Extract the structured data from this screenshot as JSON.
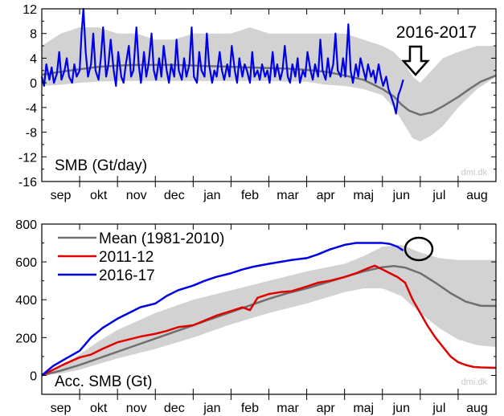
{
  "chart_data": [
    {
      "type": "line",
      "panel": "top",
      "title": "SMB (Gt/day)",
      "xlabel": "",
      "ylabel": "",
      "ylim": [
        -16,
        12
      ],
      "yticks": [
        12,
        8,
        4,
        0,
        -4,
        -8,
        -12,
        -16
      ],
      "months": [
        "sep",
        "okt",
        "nov",
        "dec",
        "jan",
        "feb",
        "mar",
        "apr",
        "maj",
        "jun",
        "jul",
        "aug"
      ],
      "watermark": "dmi.dk",
      "annotation": "2016-2017",
      "x_unit": "month index (0 = 1 Sep, 12 = 31 Aug)",
      "band": {
        "name": "range (1981-2010)",
        "x": [
          0,
          0.5,
          1,
          1.5,
          2,
          2.5,
          3,
          3.5,
          4,
          4.5,
          5,
          5.5,
          6,
          6.5,
          7,
          7.5,
          8,
          8.5,
          9,
          9.3,
          9.6,
          9.8,
          10,
          10.3,
          10.6,
          11,
          11.5,
          12
        ],
        "lower": [
          -0.5,
          -0.3,
          0,
          0.2,
          0.3,
          0.3,
          0.3,
          0.3,
          0.3,
          0.3,
          0.3,
          0.3,
          0.3,
          0.2,
          0.2,
          -0.3,
          -0.5,
          -1,
          -2,
          -4,
          -7,
          -9,
          -9.5,
          -8.5,
          -7,
          -4,
          -1,
          1
        ],
        "upper": [
          6,
          8,
          9,
          9,
          8,
          8,
          7,
          7,
          8,
          8,
          8,
          9,
          8,
          8,
          8,
          8,
          8,
          7,
          6,
          5,
          3,
          1,
          0,
          2,
          4,
          5,
          6,
          6
        ]
      },
      "series": [
        {
          "name": "Mean (1981-2010)",
          "color": "#707070",
          "x": [
            0,
            0.5,
            1,
            1.5,
            2,
            2.5,
            3,
            3.5,
            4,
            4.5,
            5,
            5.5,
            6,
            6.5,
            7,
            7.5,
            8,
            8.5,
            9,
            9.3,
            9.5,
            9.7,
            10,
            10.3,
            10.6,
            11,
            11.3,
            11.6,
            12
          ],
          "y": [
            1.3,
            1.8,
            2.2,
            2.6,
            2.8,
            2.9,
            2.9,
            2.9,
            2.8,
            2.7,
            2.6,
            2.5,
            2.4,
            2.3,
            2.1,
            1.8,
            1.2,
            0.5,
            -1,
            -2.2,
            -3.5,
            -4.5,
            -5.2,
            -4.8,
            -3.8,
            -2.3,
            -1,
            0.2,
            1.2
          ]
        },
        {
          "name": "2016-17",
          "color": "#0000e6",
          "x": [
            0,
            0.06,
            0.12,
            0.2,
            0.26,
            0.32,
            0.4,
            0.46,
            0.52,
            0.6,
            0.66,
            0.72,
            0.8,
            0.86,
            0.92,
            1.0,
            1.05,
            1.1,
            1.16,
            1.22,
            1.3,
            1.36,
            1.42,
            1.5,
            1.56,
            1.62,
            1.7,
            1.76,
            1.82,
            1.9,
            1.96,
            2.02,
            2.1,
            2.16,
            2.22,
            2.3,
            2.36,
            2.42,
            2.5,
            2.56,
            2.62,
            2.7,
            2.76,
            2.82,
            2.9,
            2.96,
            3.02,
            3.1,
            3.16,
            3.22,
            3.3,
            3.36,
            3.42,
            3.5,
            3.56,
            3.62,
            3.7,
            3.76,
            3.82,
            3.9,
            3.96,
            4.02,
            4.1,
            4.16,
            4.22,
            4.3,
            4.36,
            4.42,
            4.5,
            4.56,
            4.62,
            4.7,
            4.76,
            4.82,
            4.9,
            4.96,
            5.02,
            5.1,
            5.16,
            5.22,
            5.3,
            5.36,
            5.42,
            5.5,
            5.56,
            5.62,
            5.7,
            5.76,
            5.82,
            5.9,
            5.96,
            6.02,
            6.1,
            6.16,
            6.22,
            6.3,
            6.36,
            6.42,
            6.5,
            6.56,
            6.62,
            6.7,
            6.76,
            6.82,
            6.9,
            6.96,
            7.02,
            7.1,
            7.16,
            7.22,
            7.3,
            7.36,
            7.42,
            7.5,
            7.56,
            7.62,
            7.7,
            7.76,
            7.82,
            7.9,
            7.96,
            8.02,
            8.1,
            8.16,
            8.22,
            8.3,
            8.36,
            8.42,
            8.5,
            8.56,
            8.62,
            8.7,
            8.76,
            8.82,
            8.9,
            8.96,
            9.02,
            9.1,
            9.16,
            9.22,
            9.3,
            9.36,
            9.42,
            9.48,
            9.55
          ],
          "y": [
            1,
            -0.5,
            3,
            0.5,
            2.5,
            0,
            1.5,
            5,
            0.5,
            2,
            4,
            1,
            0,
            3,
            1,
            2,
            8,
            12,
            5,
            1,
            3,
            8,
            2,
            0.5,
            4,
            9,
            1,
            3,
            7,
            2,
            -0.5,
            5,
            1,
            0,
            3,
            6,
            1,
            2,
            9,
            3,
            0,
            5,
            1,
            3,
            8,
            2,
            0.5,
            4,
            1,
            6,
            2,
            0,
            3,
            1,
            7,
            2,
            0.5,
            4,
            1,
            3,
            9,
            1,
            0,
            5,
            2,
            1,
            8,
            3,
            0,
            2,
            1,
            5,
            2,
            0.5,
            3,
            1,
            6,
            2,
            0,
            4,
            1,
            3,
            2,
            0,
            5,
            1,
            2,
            0.5,
            3,
            1,
            2,
            0,
            5,
            1,
            3,
            0.5,
            2,
            6,
            1,
            0,
            3,
            1,
            4,
            0,
            2,
            1,
            5,
            2,
            0.5,
            3,
            1,
            7,
            2,
            0.5,
            4,
            1,
            3,
            8,
            2,
            1,
            4,
            1,
            9.5,
            2,
            0,
            3,
            1,
            4,
            2,
            0.5,
            3,
            1,
            2,
            0,
            3,
            1,
            -0.5,
            1,
            -1,
            -2,
            -3.5,
            -5,
            -2,
            -1,
            0.5
          ]
        }
      ]
    },
    {
      "type": "line",
      "panel": "bottom",
      "title": "Acc. SMB (Gt)",
      "xlabel": "",
      "ylabel": "",
      "ylim": [
        -100,
        800
      ],
      "yticks": [
        0,
        200,
        400,
        600,
        800
      ],
      "months": [
        "sep",
        "okt",
        "nov",
        "dec",
        "jan",
        "feb",
        "mar",
        "apr",
        "maj",
        "jun",
        "jul",
        "aug"
      ],
      "watermark": "dmi.dk",
      "legend_position": "top-left",
      "x_unit": "month index (0 = 1 Sep, 12 = 31 Aug)",
      "band": {
        "name": "range (1981-2010)",
        "x": [
          0,
          0.5,
          1,
          1.5,
          2,
          3,
          4,
          5,
          6,
          7,
          8,
          8.5,
          9,
          9.5,
          10,
          10.5,
          11,
          11.5,
          12
        ],
        "lower": [
          0,
          10,
          30,
          60,
          90,
          140,
          200,
          270,
          330,
          380,
          440,
          460,
          460,
          420,
          330,
          250,
          190,
          160,
          150
        ],
        "upper": [
          0,
          50,
          110,
          180,
          240,
          330,
          400,
          450,
          500,
          550,
          590,
          630,
          680,
          690,
          650,
          620,
          610,
          610,
          610
        ]
      },
      "series": [
        {
          "name": "Mean (1981-2010)",
          "color": "#6e6e6e",
          "x": [
            0,
            0.5,
            1,
            1.5,
            2,
            2.5,
            3,
            3.5,
            4,
            4.5,
            5,
            5.5,
            6,
            6.5,
            7,
            7.5,
            8,
            8.5,
            9,
            9.3,
            9.6,
            10,
            10.4,
            10.8,
            11.2,
            11.6,
            12
          ],
          "y": [
            0,
            25,
            55,
            90,
            125,
            160,
            195,
            230,
            265,
            300,
            335,
            370,
            405,
            435,
            460,
            490,
            520,
            550,
            572,
            578,
            570,
            540,
            490,
            435,
            390,
            368,
            367
          ]
        },
        {
          "name": "2011-12",
          "color": "#e00000",
          "x": [
            0,
            0.3,
            0.6,
            1.0,
            1.3,
            1.6,
            2.0,
            2.3,
            2.6,
            3.0,
            3.3,
            3.6,
            4.0,
            4.3,
            4.6,
            5.0,
            5.3,
            5.5,
            5.7,
            6.0,
            6.3,
            6.6,
            7.0,
            7.3,
            7.6,
            8.0,
            8.3,
            8.6,
            8.8,
            9.0,
            9.2,
            9.4,
            9.6,
            9.8,
            10.0,
            10.2,
            10.4,
            10.6,
            10.8,
            11.0,
            11.2,
            11.4,
            11.6,
            12
          ],
          "y": [
            0,
            30,
            60,
            95,
            110,
            140,
            175,
            190,
            205,
            220,
            235,
            255,
            265,
            290,
            315,
            340,
            360,
            345,
            410,
            430,
            440,
            445,
            470,
            490,
            500,
            520,
            540,
            565,
            580,
            560,
            540,
            520,
            490,
            400,
            330,
            260,
            200,
            150,
            100,
            70,
            55,
            45,
            42,
            40
          ]
        },
        {
          "name": "2016-17",
          "color": "#0000e6",
          "x": [
            0,
            0.3,
            0.6,
            1.0,
            1.3,
            1.6,
            2.0,
            2.3,
            2.6,
            3.0,
            3.3,
            3.6,
            4.0,
            4.3,
            4.6,
            5.0,
            5.3,
            5.6,
            6.0,
            6.3,
            6.6,
            7.0,
            7.3,
            7.6,
            8.0,
            8.3,
            8.6,
            9.0,
            9.2,
            9.4,
            9.55
          ],
          "y": [
            0,
            50,
            85,
            130,
            200,
            250,
            300,
            330,
            360,
            380,
            420,
            450,
            475,
            500,
            520,
            540,
            560,
            575,
            590,
            600,
            610,
            620,
            640,
            665,
            690,
            700,
            700,
            700,
            695,
            680,
            660
          ]
        }
      ]
    }
  ]
}
